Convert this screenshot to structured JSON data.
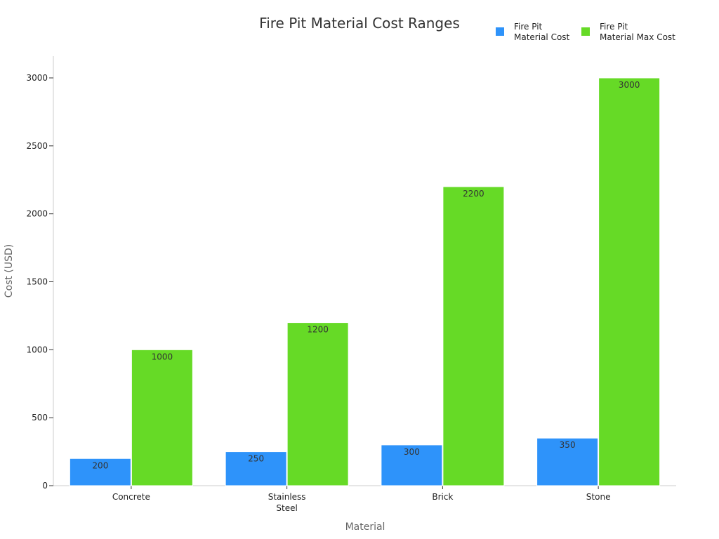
{
  "chart_data": {
    "type": "bar",
    "title": "Fire Pit Material Cost Ranges",
    "xlabel": "Material",
    "ylabel": "Cost (USD)",
    "categories": [
      [
        "Concrete"
      ],
      [
        "Stainless",
        "Steel"
      ],
      [
        "Brick"
      ],
      [
        "Stone"
      ]
    ],
    "series": [
      {
        "name": [
          "Fire Pit",
          "Material Cost"
        ],
        "color": "#2e93fa",
        "values": [
          200,
          250,
          300,
          350
        ]
      },
      {
        "name": [
          "Fire Pit",
          "Material Max Cost"
        ],
        "color": "#66da26",
        "values": [
          1000,
          1200,
          2200,
          3000
        ]
      }
    ],
    "yticks": [
      0,
      500,
      1000,
      1500,
      2000,
      2500,
      3000
    ],
    "ylim": [
      0,
      3000
    ],
    "legend_position": "top-right",
    "grid": false
  }
}
